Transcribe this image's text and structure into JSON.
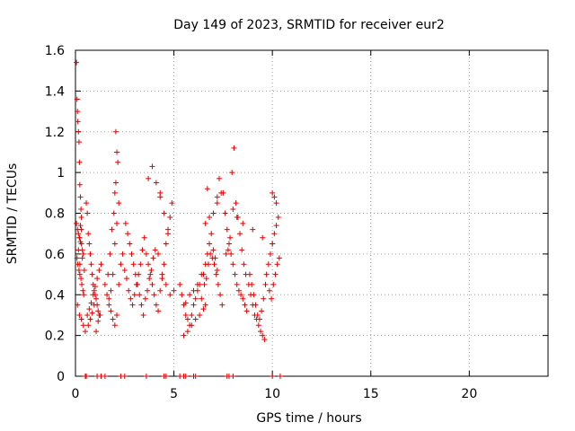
{
  "chart_data": {
    "type": "scatter",
    "title": "Day 149 of 2023, SRMTID for receiver eur2",
    "xlabel": "GPS time / hours",
    "ylabel": "SRMTID / TECUs",
    "xlim": [
      0,
      24
    ],
    "ylim": [
      0,
      1.6
    ],
    "xticks": [
      0,
      5,
      10,
      15,
      20
    ],
    "yticks": [
      0,
      0.2,
      0.4,
      0.6,
      0.8,
      1,
      1.2,
      1.4,
      1.6
    ],
    "xtick_labels": [
      "0",
      "5",
      "10",
      "15",
      "20"
    ],
    "ytick_labels": [
      "0",
      "0.2",
      "0.4",
      "0.6",
      "0.8",
      "1",
      "1.2",
      "1.4",
      "1.6"
    ],
    "grid": true,
    "color": "#e00000",
    "marker": "plus",
    "series": [
      {
        "name": "SRMTID",
        "x": [
          0.05,
          0.08,
          0.1,
          0.12,
          0.15,
          0.18,
          0.2,
          0.22,
          0.25,
          0.28,
          0.3,
          0.05,
          0.1,
          0.15,
          0.2,
          0.25,
          0.3,
          0.35,
          0.4,
          0.08,
          0.12,
          0.18,
          0.22,
          0.28,
          0.32,
          0.38,
          0.42,
          0.1,
          0.2,
          0.3,
          0.4,
          0.5,
          0.55,
          0.6,
          0.65,
          0.7,
          0.75,
          0.8,
          0.85,
          0.9,
          0.95,
          1.0,
          1.05,
          1.1,
          1.15,
          1.2,
          0.6,
          0.7,
          0.8,
          0.9,
          1.0,
          1.1,
          1.2,
          1.3,
          0.65,
          0.75,
          0.85,
          0.95,
          1.05,
          1.15,
          1.25,
          1.5,
          1.6,
          1.7,
          1.8,
          1.9,
          2.0,
          2.1,
          2.2,
          2.05,
          2.1,
          2.15,
          2.0,
          1.95,
          1.85,
          1.75,
          1.65,
          1.7,
          1.8,
          1.9,
          2.0,
          2.1,
          2.2,
          2.3,
          2.4,
          2.5,
          2.6,
          2.7,
          2.8,
          2.9,
          3.0,
          3.1,
          3.2,
          3.3,
          3.4,
          3.5,
          2.55,
          2.65,
          2.75,
          2.85,
          2.95,
          3.05,
          3.15,
          3.25,
          3.35,
          3.45,
          3.55,
          3.65,
          3.75,
          3.85,
          3.95,
          4.05,
          3.6,
          3.7,
          3.8,
          3.9,
          4.0,
          4.1,
          4.2,
          4.3,
          4.4,
          4.5,
          4.6,
          4.7,
          4.8,
          4.9,
          3.9,
          4.1,
          4.3,
          4.5,
          4.7,
          4.2,
          4.4,
          4.6,
          4.8,
          5.0,
          5.3,
          5.4,
          5.5,
          5.6,
          5.7,
          5.8,
          5.9,
          6.0,
          6.1,
          6.2,
          6.3,
          6.4,
          5.5,
          5.7,
          5.9,
          6.1,
          6.3,
          6.5,
          5.6,
          5.8,
          6.0,
          6.2,
          6.4,
          6.6,
          6.5,
          6.6,
          6.7,
          6.8,
          6.9,
          7.0,
          7.1,
          7.2,
          6.55,
          6.65,
          6.75,
          6.85,
          6.95,
          7.05,
          7.15,
          7.25,
          7.35,
          7.45,
          6.6,
          6.8,
          7.0,
          7.2,
          7.4,
          7.3,
          7.5,
          7.6,
          7.7,
          7.8,
          7.9,
          8.0,
          8.1,
          8.2,
          8.3,
          8.4,
          8.5,
          8.6,
          8.7,
          7.65,
          7.75,
          7.85,
          7.95,
          8.05,
          8.15,
          8.25,
          8.35,
          8.45,
          8.55,
          8.65,
          8.8,
          8.9,
          9.0,
          9.1,
          9.2,
          9.3,
          9.4,
          9.5,
          9.6,
          8.85,
          8.95,
          9.05,
          9.15,
          9.25,
          9.35,
          9.45,
          9.55,
          9.65,
          9.7,
          9.8,
          9.9,
          10.0,
          10.1,
          10.2,
          10.3,
          9.85,
          9.95,
          10.05,
          10.15,
          10.25,
          10.35,
          10.0,
          10.1,
          10.2,
          0.2,
          0.3,
          0.25,
          0.15,
          0.22,
          0.35,
          0.45,
          2.05,
          3.7,
          4.3,
          6.7,
          7.2,
          8.0,
          8.2,
          8.5,
          9.0,
          9.5,
          10.0,
          0.5,
          0.55,
          1.1,
          1.3,
          1.5,
          2.3,
          2.5,
          3.6,
          4.5,
          4.6,
          5.3,
          5.5,
          5.6,
          6.0,
          6.1,
          7.7,
          7.8,
          8.0,
          10.0,
          10.4
        ],
        "y": [
          1.54,
          1.36,
          1.3,
          1.25,
          1.2,
          1.15,
          1.05,
          0.94,
          0.88,
          0.82,
          0.78,
          0.75,
          0.72,
          0.7,
          0.68,
          0.66,
          0.65,
          0.62,
          0.6,
          0.58,
          0.55,
          0.52,
          0.5,
          0.48,
          0.45,
          0.42,
          0.4,
          0.35,
          0.3,
          0.28,
          0.25,
          0.22,
          0.85,
          0.8,
          0.7,
          0.65,
          0.6,
          0.55,
          0.5,
          0.45,
          0.42,
          0.4,
          0.38,
          0.35,
          0.32,
          0.3,
          0.3,
          0.33,
          0.36,
          0.4,
          0.44,
          0.48,
          0.52,
          0.55,
          0.25,
          0.28,
          0.31,
          0.35,
          0.22,
          0.27,
          0.3,
          0.45,
          0.4,
          0.38,
          0.42,
          0.5,
          0.65,
          0.75,
          0.85,
          1.2,
          1.1,
          1.05,
          0.9,
          0.8,
          0.72,
          0.6,
          0.5,
          0.35,
          0.32,
          0.28,
          0.25,
          0.3,
          0.45,
          0.55,
          0.6,
          0.52,
          0.48,
          0.42,
          0.38,
          0.35,
          0.4,
          0.45,
          0.5,
          0.55,
          0.62,
          0.68,
          0.75,
          0.7,
          0.65,
          0.6,
          0.55,
          0.5,
          0.45,
          0.4,
          0.35,
          0.3,
          0.38,
          0.42,
          0.48,
          0.52,
          0.58,
          0.62,
          0.6,
          0.55,
          0.5,
          0.45,
          0.4,
          0.35,
          0.32,
          0.42,
          0.48,
          0.55,
          0.65,
          0.72,
          0.78,
          0.85,
          1.03,
          0.95,
          0.9,
          0.8,
          0.7,
          0.6,
          0.5,
          0.45,
          0.4,
          0.42,
          0.45,
          0.4,
          0.35,
          0.3,
          0.28,
          0.25,
          0.3,
          0.35,
          0.38,
          0.42,
          0.45,
          0.5,
          0.2,
          0.22,
          0.25,
          0.28,
          0.3,
          0.33,
          0.36,
          0.4,
          0.42,
          0.45,
          0.38,
          0.35,
          0.5,
          0.55,
          0.6,
          0.65,
          0.7,
          0.62,
          0.58,
          0.52,
          0.45,
          0.48,
          0.55,
          0.6,
          0.58,
          0.55,
          0.5,
          0.45,
          0.4,
          0.35,
          0.75,
          0.78,
          0.8,
          0.85,
          0.9,
          0.97,
          0.9,
          0.8,
          0.72,
          0.65,
          0.6,
          0.55,
          0.5,
          0.45,
          0.42,
          0.4,
          0.38,
          0.35,
          0.32,
          0.6,
          0.62,
          0.68,
          1.0,
          1.12,
          0.85,
          0.78,
          0.7,
          0.62,
          0.55,
          0.5,
          0.45,
          0.4,
          0.35,
          0.3,
          0.28,
          0.25,
          0.22,
          0.2,
          0.18,
          0.5,
          0.45,
          0.4,
          0.35,
          0.3,
          0.28,
          0.32,
          0.38,
          0.45,
          0.5,
          0.55,
          0.6,
          0.65,
          0.7,
          0.74,
          0.78,
          0.42,
          0.38,
          0.45,
          0.5,
          0.55,
          0.58,
          0.9,
          0.88,
          0.85,
          0.68,
          0.72,
          0.74,
          0.62,
          0.55,
          0.58,
          0.52,
          0.95,
          0.97,
          0.88,
          0.92,
          0.88,
          0.82,
          0.78,
          0.75,
          0.72,
          0.68,
          0.65,
          0.0,
          0.0,
          0.0,
          0.0,
          0.0,
          0.0,
          0.0,
          0.0,
          0.0,
          0.0,
          0.0,
          0.0,
          0.0,
          0.0,
          0.0,
          0.0,
          0.0,
          0.0,
          0.0,
          0.0
        ]
      }
    ]
  }
}
